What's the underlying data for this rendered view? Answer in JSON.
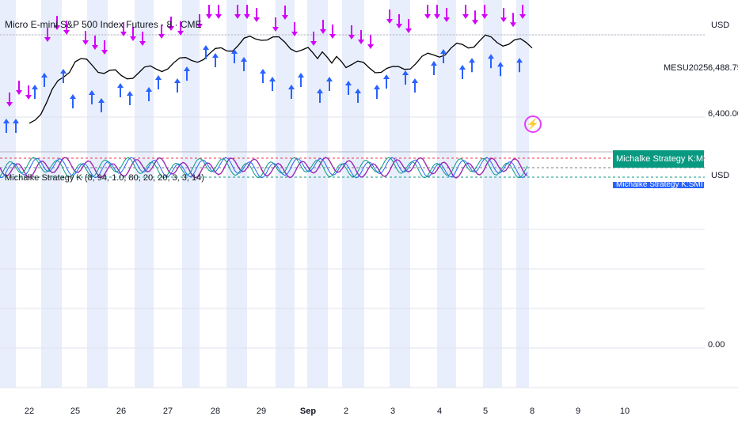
{
  "header": {
    "title": "Micro E-mini S&P 500 Index Futures · 8 · CME",
    "indicator": "Michalke Strategy K (8, 94, 1.0, 80, 20, 20, 3, 3, 14)"
  },
  "price_axis": {
    "currency_top": "USD",
    "currency_bottom": "USD",
    "symbol_label": "MESU2025",
    "labels": [
      "6,488.75",
      "6,400.00"
    ],
    "zero_label": "0.00"
  },
  "legend_tags": {
    "primary": "Michalke Strategy K:MMI Scaled",
    "secondary": "Michalke Strategy K:SMI Scaled"
  },
  "colors": {
    "price_line": "#000000",
    "buy_arrow": "#2962ff",
    "sell_arrow": "#d500f9",
    "session_band": "#e8eefc",
    "osc_purple": "#9c27b0",
    "osc_blue": "#2962ff",
    "osc_teal": "#089981",
    "level_red": "#f23645",
    "level_teal": "#089981"
  },
  "chart_data": {
    "type": "line",
    "title": "Micro E-mini S&P 500 Index Futures · 8 · CME",
    "x_tick_labels": [
      "22",
      "25",
      "26",
      "27",
      "28",
      "29",
      "Sep",
      "2",
      "3",
      "4",
      "5",
      "8",
      "9",
      "10"
    ],
    "y_tick_labels": [
      "6,488.75",
      "6,400.00"
    ],
    "series": [
      {
        "name": "MESU2025",
        "x": [
          "22",
          "25",
          "26",
          "27",
          "28",
          "29",
          "Sep",
          "2",
          "3",
          "4",
          "5",
          "8"
        ],
        "values": [
          6385,
          6470,
          6448,
          6462,
          6478,
          6500,
          6480,
          6465,
          6455,
          6478,
          6495,
          6488.75
        ]
      }
    ],
    "last_value": 6488.75,
    "ylim": [
      6360,
      6530
    ],
    "grid": true,
    "legend": "top-right"
  }
}
